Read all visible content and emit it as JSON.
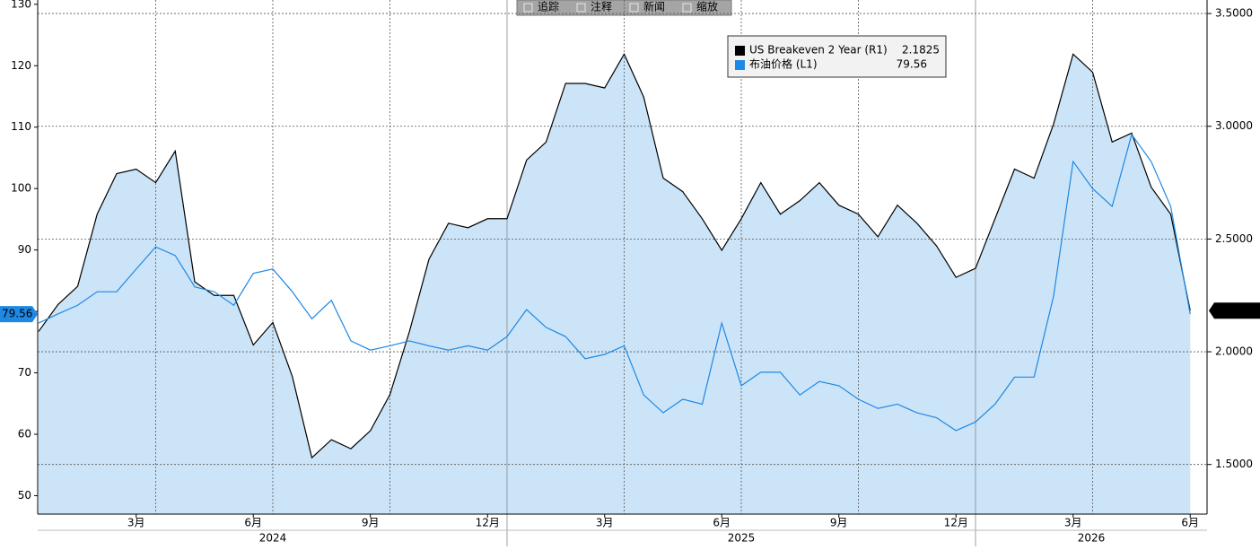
{
  "toolbar": [
    "追踪",
    "注释",
    "新闻",
    "缩放"
  ],
  "chart_data": {
    "type": "line",
    "categories": [
      null,
      null,
      null,
      null,
      null,
      "3月",
      null,
      null,
      null,
      null,
      null,
      "6月",
      null,
      null,
      null,
      null,
      null,
      "9月",
      null,
      null,
      null,
      null,
      null,
      "12月",
      null,
      null,
      null,
      null,
      null,
      "3月",
      null,
      null,
      null,
      null,
      null,
      "6月",
      null,
      null,
      null,
      null,
      null,
      "9月",
      null,
      null,
      null,
      null,
      null,
      "12月",
      null,
      null,
      null,
      null,
      null,
      "3月",
      null,
      null,
      null,
      null,
      null,
      "6月"
    ],
    "years": [
      "2024",
      "2025",
      "2026"
    ],
    "series": [
      {
        "name": "US Breakeven 2 Year (R1)",
        "color": "#000000",
        "fill": "#cce4f7",
        "area": true,
        "axis": "y2",
        "values": [
          2.09,
          2.21,
          2.29,
          2.61,
          2.79,
          2.81,
          2.75,
          2.89,
          2.31,
          2.25,
          2.25,
          2.03,
          2.13,
          1.89,
          1.53,
          1.61,
          1.57,
          1.65,
          1.81,
          2.09,
          2.41,
          2.57,
          2.55,
          2.59,
          2.59,
          2.85,
          2.93,
          3.19,
          3.19,
          3.17,
          3.32,
          3.13,
          2.77,
          2.71,
          2.59,
          2.45,
          2.59,
          2.75,
          2.61,
          2.67,
          2.75,
          2.65,
          2.61,
          2.51,
          2.65,
          2.57,
          2.47,
          2.33,
          2.37,
          2.59,
          2.81,
          2.77,
          3.01,
          3.32,
          3.24,
          2.93,
          2.97,
          2.73,
          2.61,
          2.1825
        ]
      },
      {
        "name": "布油价格 (L1)",
        "color": "#1e88e5",
        "area": false,
        "values": [
          78.1,
          79.6,
          81,
          83.2,
          83.2,
          86.9,
          90.5,
          89.1,
          84,
          83.2,
          81,
          86.2,
          86.9,
          83.2,
          78.8,
          81.8,
          75.2,
          73.7,
          74.4,
          75.2,
          74.4,
          73.7,
          74.4,
          73.7,
          75.9,
          80.3,
          77.4,
          75.9,
          72.3,
          73,
          74.4,
          66.4,
          63.5,
          65.7,
          64.9,
          78.1,
          67.9,
          70.1,
          70.1,
          66.4,
          68.6,
          67.9,
          65.7,
          64.2,
          64.9,
          63.5,
          62.7,
          60.6,
          62,
          64.9,
          69.3,
          69.3,
          82.5,
          104.4,
          100,
          97.1,
          108.8,
          104.4,
          97.1,
          79.56
        ]
      }
    ],
    "ylim": [
      47,
      130.7
    ],
    "yticks": [
      50,
      60,
      70,
      80,
      90,
      100,
      110,
      120,
      130
    ],
    "y2lim": [
      1.28,
      3.56
    ],
    "y2ticks": [
      {
        "value": 1.5,
        "label": "1.5000"
      },
      {
        "value": 2,
        "label": "2.0000"
      },
      {
        "value": 2.5,
        "label": "2.5000"
      },
      {
        "value": 3,
        "label": "3.0000"
      },
      {
        "value": 3.5,
        "label": "3.5000"
      }
    ],
    "grid": true
  }
}
